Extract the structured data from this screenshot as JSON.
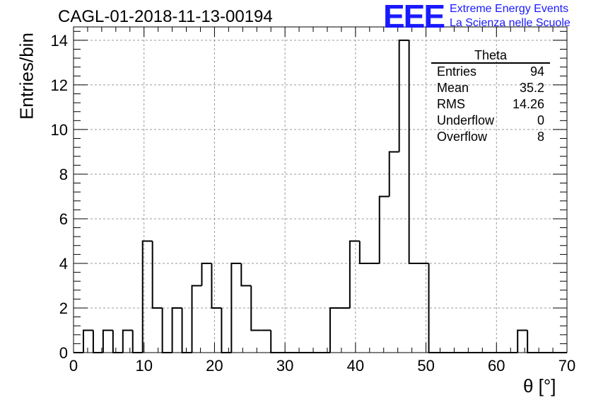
{
  "header": {
    "title": "CAGL-01-2018-11-13-00194",
    "logo_text": "EEE",
    "logo_line1": "Extreme Energy Events",
    "logo_line2": "La Scienza nelle Scuole"
  },
  "stats_box": {
    "name": "Theta",
    "rows": [
      {
        "label": "Entries",
        "value": "94"
      },
      {
        "label": "Mean",
        "value": "35.2"
      },
      {
        "label": "RMS",
        "value": "14.26"
      },
      {
        "label": "Underflow",
        "value": "0"
      },
      {
        "label": "Overflow",
        "value": "8"
      }
    ]
  },
  "colors": {
    "line": "#000000",
    "grid": "#999999",
    "logo": "#1a1aff"
  },
  "chart_data": {
    "type": "bar",
    "style": "step histogram",
    "xlabel": "θ [°]",
    "ylabel": "Entries/bin",
    "xlim": [
      0,
      70
    ],
    "ylim": [
      0,
      14.6
    ],
    "grid": true,
    "x_ticks": [
      0,
      10,
      20,
      30,
      40,
      50,
      60,
      70
    ],
    "y_ticks": [
      0,
      2,
      4,
      6,
      8,
      10,
      12,
      14
    ],
    "bin_edges": [
      0,
      1.4,
      2.8,
      4.2,
      5.6,
      7.0,
      8.4,
      9.8,
      11.2,
      12.6,
      14.0,
      15.4,
      16.8,
      18.2,
      19.6,
      21.0,
      22.4,
      23.8,
      25.2,
      26.6,
      28.0,
      29.4,
      30.8,
      32.2,
      33.6,
      35.0,
      36.4,
      37.8,
      39.2,
      40.6,
      42.0,
      43.4,
      44.8,
      46.2,
      47.6,
      49.0,
      50.4,
      51.8,
      53.2,
      54.6,
      56.0,
      57.4,
      58.8,
      60.2,
      61.6,
      63.0,
      64.4,
      65.8,
      67.2,
      68.6,
      70.0
    ],
    "values": [
      0,
      1,
      0,
      1,
      0,
      1,
      0,
      5,
      2,
      0,
      2,
      0,
      3,
      4,
      2,
      0,
      4,
      3,
      1,
      1,
      0,
      0,
      0,
      0,
      0,
      0,
      2,
      2,
      5,
      4,
      4,
      7,
      9,
      14,
      4,
      4,
      0,
      0,
      0,
      0,
      0,
      0,
      0,
      0,
      0,
      1,
      0,
      0,
      0,
      0
    ]
  }
}
